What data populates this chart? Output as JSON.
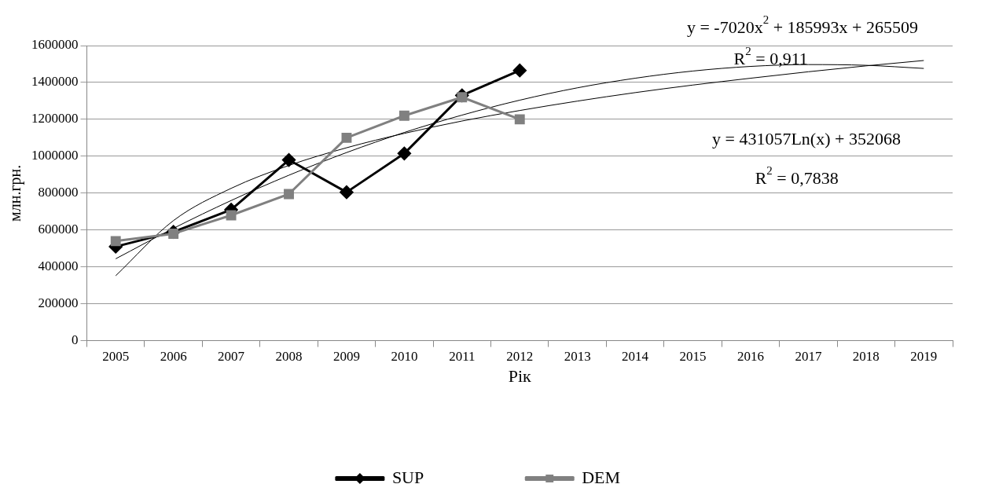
{
  "chart_data": {
    "type": "line",
    "xlabel": "Рік",
    "ylabel": "млн.грн.",
    "categories": [
      "2005",
      "2006",
      "2007",
      "2008",
      "2009",
      "2010",
      "2011",
      "2012",
      "2013",
      "2014",
      "2015",
      "2016",
      "2017",
      "2018",
      "2019"
    ],
    "series": [
      {
        "name": "SUP",
        "color": "#000000",
        "marker": "diamond",
        "values": [
          510000,
          590000,
          710000,
          980000,
          805000,
          1015000,
          1330000,
          1465000,
          null,
          null,
          null,
          null,
          null,
          null,
          null
        ]
      },
      {
        "name": "DEM",
        "color": "#808080",
        "marker": "square",
        "values": [
          540000,
          580000,
          680000,
          795000,
          1100000,
          1220000,
          1320000,
          1200000,
          null,
          null,
          null,
          null,
          null,
          null,
          null
        ]
      },
      {
        "type": "line",
        "color": "#000000",
        "marker": "none",
        "values": [
          444000,
          609000,
          760000,
          897000,
          1020000,
          1129000,
          1223000,
          1304000,
          1371000,
          1423000,
          1462000,
          1487000,
          1497000,
          1493000,
          1476000
        ]
      },
      {
        "type": "line",
        "color": "#000000",
        "marker": "none",
        "values": [
          352000,
          651000,
          826000,
          950000,
          1046000,
          1124000,
          1191000,
          1248000,
          1299000,
          1345000,
          1386000,
          1423000,
          1458000,
          1490000,
          1519000
        ]
      }
    ],
    "ylim": [
      0,
      1600000
    ],
    "yticks": [
      0,
      200000,
      400000,
      600000,
      800000,
      1000000,
      1200000,
      1400000,
      1600000
    ],
    "grid": "y",
    "legend": "bottom",
    "annotations": [
      "y = -7020x$^{2}$ + 185993x + 265509",
      "R$^{2}$ = 0,911",
      "y = 431057Ln(x) + 352068",
      "R$^{2}$ = 0,7838"
    ]
  }
}
